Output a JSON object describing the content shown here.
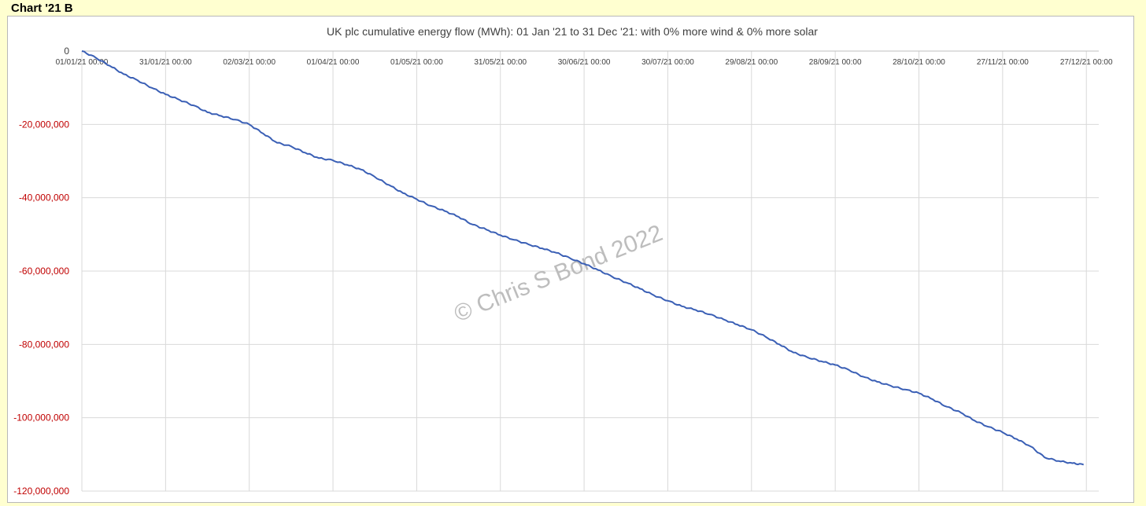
{
  "page_label": "Chart '21 B",
  "watermark": "© Chris S Bond  2022",
  "chart_data": {
    "type": "line",
    "title": "UK plc cumulative energy flow (MWh): 01 Jan '21 to 31 Dec '21: with 0% more wind & 0% more solar",
    "xlabel": "",
    "ylabel": "",
    "x_range": [
      "01/01/21 00:00",
      "31/12/21 00:00"
    ],
    "ylim": [
      -120000000,
      0
    ],
    "y_ticks": [
      {
        "value": 0,
        "label": "0"
      },
      {
        "value": -20000000,
        "label": "-20,000,000"
      },
      {
        "value": -40000000,
        "label": "-40,000,000"
      },
      {
        "value": -60000000,
        "label": "-60,000,000"
      },
      {
        "value": -80000000,
        "label": "-80,000,000"
      },
      {
        "value": -100000000,
        "label": "-100,000,000"
      },
      {
        "value": -120000000,
        "label": "-120,000,000"
      }
    ],
    "x_ticks": [
      {
        "day": 0,
        "label": "01/01/21 00:00"
      },
      {
        "day": 30,
        "label": "31/01/21 00:00"
      },
      {
        "day": 60,
        "label": "02/03/21 00:00"
      },
      {
        "day": 90,
        "label": "01/04/21 00:00"
      },
      {
        "day": 120,
        "label": "01/05/21 00:00"
      },
      {
        "day": 150,
        "label": "31/05/21 00:00"
      },
      {
        "day": 180,
        "label": "30/06/21 00:00"
      },
      {
        "day": 210,
        "label": "30/07/21 00:00"
      },
      {
        "day": 240,
        "label": "29/08/21 00:00"
      },
      {
        "day": 270,
        "label": "28/09/21 00:00"
      },
      {
        "day": 300,
        "label": "28/10/21 00:00"
      },
      {
        "day": 330,
        "label": "27/11/21 00:00"
      },
      {
        "day": 360,
        "label": "27/12/21 00:00"
      }
    ],
    "grid": {
      "vertical": true,
      "horizontal": true
    },
    "legend": "none",
    "series": [
      {
        "color": "#3a5fb5",
        "points": [
          [
            0,
            0
          ],
          [
            5,
            -1800000
          ],
          [
            10,
            -4000000
          ],
          [
            15,
            -6300000
          ],
          [
            20,
            -8000000
          ],
          [
            25,
            -10000000
          ],
          [
            30,
            -11800000
          ],
          [
            35,
            -13300000
          ],
          [
            40,
            -14800000
          ],
          [
            45,
            -16700000
          ],
          [
            50,
            -17700000
          ],
          [
            55,
            -18700000
          ],
          [
            60,
            -20000000
          ],
          [
            65,
            -22500000
          ],
          [
            70,
            -25000000
          ],
          [
            75,
            -26000000
          ],
          [
            80,
            -27700000
          ],
          [
            85,
            -29200000
          ],
          [
            90,
            -29800000
          ],
          [
            95,
            -31000000
          ],
          [
            100,
            -32300000
          ],
          [
            105,
            -34300000
          ],
          [
            110,
            -36500000
          ],
          [
            115,
            -38700000
          ],
          [
            120,
            -40400000
          ],
          [
            125,
            -42200000
          ],
          [
            130,
            -43600000
          ],
          [
            135,
            -45200000
          ],
          [
            140,
            -47300000
          ],
          [
            145,
            -48700000
          ],
          [
            150,
            -50200000
          ],
          [
            155,
            -51500000
          ],
          [
            160,
            -52700000
          ],
          [
            165,
            -53800000
          ],
          [
            170,
            -55000000
          ],
          [
            175,
            -56500000
          ],
          [
            180,
            -58000000
          ],
          [
            185,
            -59700000
          ],
          [
            190,
            -61500000
          ],
          [
            195,
            -63100000
          ],
          [
            200,
            -64800000
          ],
          [
            205,
            -66600000
          ],
          [
            210,
            -68100000
          ],
          [
            215,
            -69600000
          ],
          [
            220,
            -70600000
          ],
          [
            225,
            -71800000
          ],
          [
            230,
            -73200000
          ],
          [
            235,
            -74600000
          ],
          [
            240,
            -76000000
          ],
          [
            245,
            -77900000
          ],
          [
            250,
            -80000000
          ],
          [
            255,
            -82200000
          ],
          [
            260,
            -83500000
          ],
          [
            265,
            -84600000
          ],
          [
            270,
            -85600000
          ],
          [
            275,
            -87000000
          ],
          [
            280,
            -88800000
          ],
          [
            285,
            -90200000
          ],
          [
            290,
            -91300000
          ],
          [
            295,
            -92300000
          ],
          [
            300,
            -93300000
          ],
          [
            305,
            -95000000
          ],
          [
            310,
            -97000000
          ],
          [
            315,
            -98600000
          ],
          [
            320,
            -100800000
          ],
          [
            325,
            -102500000
          ],
          [
            330,
            -104000000
          ],
          [
            335,
            -105800000
          ],
          [
            340,
            -107800000
          ],
          [
            345,
            -110800000
          ],
          [
            350,
            -111800000
          ],
          [
            355,
            -112400000
          ],
          [
            359,
            -112800000
          ]
        ]
      }
    ]
  }
}
